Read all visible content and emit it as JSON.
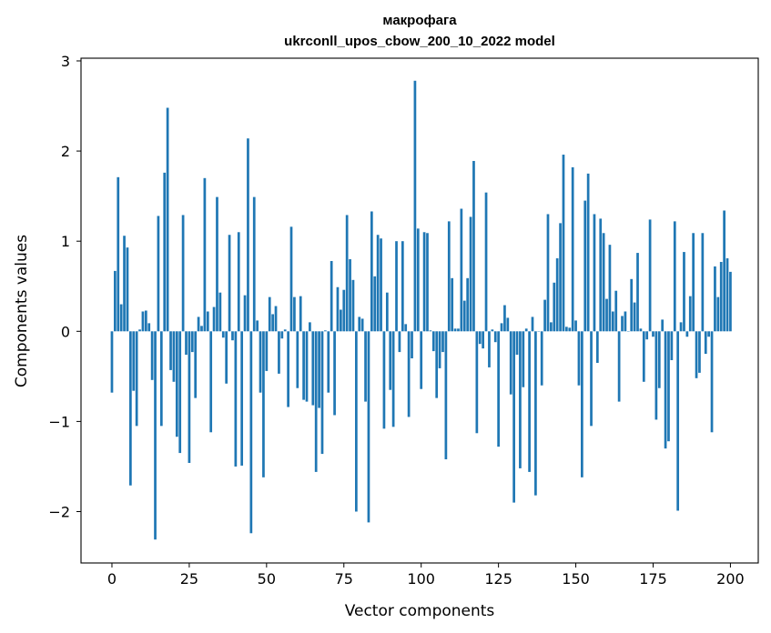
{
  "chart_data": {
    "type": "bar",
    "title": "макрофага",
    "subtitle": "ukrconll_upos_cbow_200_10_2022 model",
    "xlabel": "Vector components",
    "ylabel": "Components values",
    "xlim": [
      -10,
      209
    ],
    "ylim": [
      -2.57,
      3.03
    ],
    "xticks": [
      0,
      25,
      50,
      75,
      100,
      125,
      150,
      175,
      200
    ],
    "yticks": [
      -2,
      -1,
      0,
      1,
      2,
      3
    ],
    "ytick_labels": [
      "−2",
      "−1",
      "0",
      "1",
      "2",
      "3"
    ],
    "bar_color": "#1f77b4",
    "grid": false,
    "legend": "none",
    "values": [
      -0.68,
      0.67,
      1.71,
      0.3,
      1.06,
      0.93,
      -1.71,
      -0.66,
      -1.05,
      0.02,
      0.22,
      0.23,
      0.09,
      -0.54,
      -2.31,
      1.28,
      -1.05,
      1.76,
      2.48,
      -0.43,
      -0.56,
      -1.17,
      -1.35,
      1.29,
      -0.26,
      -1.46,
      -0.23,
      -0.74,
      0.16,
      0.06,
      1.7,
      0.22,
      -1.12,
      0.27,
      1.49,
      0.43,
      -0.07,
      -0.58,
      1.07,
      -0.1,
      -1.5,
      1.1,
      -1.49,
      0.4,
      2.14,
      -2.24,
      1.49,
      0.12,
      -0.68,
      -1.62,
      -0.44,
      0.38,
      0.19,
      0.28,
      -0.47,
      -0.08,
      0.02,
      -0.84,
      1.16,
      0.38,
      -0.63,
      0.39,
      -0.76,
      -0.78,
      0.1,
      -0.82,
      -1.56,
      -0.85,
      -1.36,
      0.01,
      -0.68,
      0.78,
      -0.93,
      0.49,
      0.24,
      0.46,
      1.29,
      0.8,
      0.57,
      -2.0,
      0.16,
      0.14,
      -0.78,
      -2.12,
      1.33,
      0.61,
      1.07,
      1.03,
      -1.08,
      0.43,
      -0.65,
      -1.06,
      1.0,
      -0.23,
      1.0,
      0.08,
      -0.95,
      -0.3,
      2.78,
      1.14,
      -0.64,
      1.1,
      1.09,
      0.01,
      -0.22,
      -0.74,
      -0.41,
      -0.23,
      -1.42,
      1.22,
      0.59,
      0.03,
      0.03,
      1.36,
      0.34,
      0.59,
      1.27,
      1.89,
      -1.13,
      -0.14,
      -0.19,
      1.54,
      -0.4,
      0.02,
      -0.12,
      -1.28,
      0.09,
      0.29,
      0.15,
      -0.7,
      -1.9,
      -0.26,
      -1.52,
      -0.62,
      0.03,
      -1.56,
      0.16,
      -1.82,
      0.0,
      -0.6,
      0.35,
      1.3,
      0.1,
      0.54,
      0.81,
      1.2,
      1.96,
      0.05,
      0.04,
      1.82,
      0.12,
      -0.6,
      -1.62,
      1.45,
      1.75,
      -1.05,
      1.3,
      -0.35,
      1.25,
      1.09,
      0.36,
      0.96,
      0.22,
      0.45,
      -0.78,
      0.17,
      0.22,
      0.0,
      0.58,
      0.32,
      0.87,
      0.03,
      -0.56,
      -0.09,
      1.24,
      -0.06,
      -0.98,
      -0.63,
      0.13,
      -1.3,
      -1.22,
      -0.32,
      1.22,
      -1.99,
      0.1,
      0.88,
      -0.06,
      0.39,
      1.09,
      -0.52,
      -0.46,
      1.09,
      -0.25,
      -0.06,
      -1.12,
      0.72,
      0.38,
      0.77,
      1.34,
      0.81,
      0.66
    ]
  }
}
